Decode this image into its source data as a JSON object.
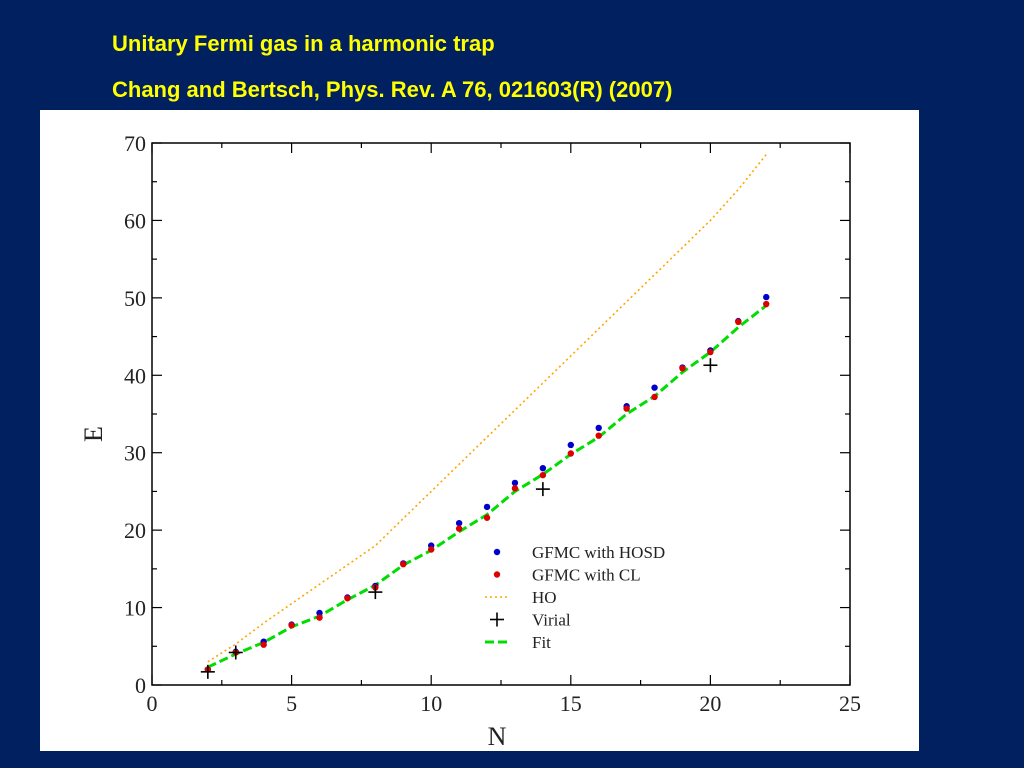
{
  "slide": {
    "title": "Unitary Fermi gas in a harmonic trap",
    "subtitle": "Chang and Bertsch, Phys. Rev. A 76, 021603(R) (2007)",
    "background_color": "#002060",
    "title_color": "#ffff00"
  },
  "chart_data": {
    "type": "scatter",
    "xlabel": "N",
    "ylabel": "E",
    "xlim": [
      0,
      25
    ],
    "ylim": [
      0,
      70
    ],
    "xticks": [
      0,
      5,
      10,
      15,
      20,
      25
    ],
    "yticks": [
      0,
      10,
      20,
      30,
      40,
      50,
      60,
      70
    ],
    "grid": false,
    "legend_placement": "lower-right",
    "series": [
      {
        "name": "GFMC with HOSD",
        "kind": "points",
        "marker": "dot",
        "color": "#0000cc",
        "x": [
          2,
          3,
          4,
          5,
          6,
          7,
          8,
          9,
          10,
          11,
          12,
          13,
          14,
          15,
          16,
          17,
          18,
          19,
          20,
          21,
          22
        ],
        "y": [
          2.0,
          4.3,
          5.6,
          7.8,
          9.3,
          11.3,
          12.8,
          15.7,
          18.0,
          20.9,
          23.0,
          26.1,
          28.0,
          31.0,
          33.2,
          36.0,
          38.4,
          41.0,
          43.2,
          47.0,
          50.1
        ]
      },
      {
        "name": "GFMC with CL",
        "kind": "points",
        "marker": "dot",
        "color": "#dd0000",
        "x": [
          2,
          3,
          4,
          5,
          6,
          7,
          8,
          9,
          10,
          11,
          12,
          13,
          14,
          15,
          16,
          17,
          18,
          19,
          20,
          21,
          22
        ],
        "y": [
          2.0,
          4.2,
          5.2,
          7.7,
          8.7,
          11.2,
          12.6,
          15.6,
          17.5,
          20.2,
          21.6,
          25.4,
          27.1,
          29.9,
          32.2,
          35.7,
          37.2,
          40.9,
          43.0,
          46.9,
          49.2
        ]
      },
      {
        "name": "HO",
        "kind": "line",
        "style": "dotted",
        "color": "#ffa500",
        "x": [
          2,
          3,
          4,
          5,
          6,
          7,
          8,
          9,
          10,
          11,
          12,
          13,
          14,
          15,
          16,
          17,
          18,
          19,
          20,
          21,
          22
        ],
        "y": [
          3.0,
          5.3,
          8.0,
          10.5,
          13.0,
          15.5,
          18.0,
          21.5,
          25.0,
          28.5,
          32.0,
          35.5,
          39.0,
          42.5,
          46.0,
          49.5,
          53.0,
          56.5,
          60.0,
          64.0,
          68.5
        ]
      },
      {
        "name": "Virial",
        "kind": "points",
        "marker": "plus",
        "color": "#000000",
        "x": [
          2,
          3,
          8,
          14,
          20
        ],
        "y": [
          1.7,
          4.2,
          12.0,
          25.3,
          41.3
        ]
      },
      {
        "name": "Fit",
        "kind": "line",
        "style": "dashed",
        "color": "#00dd00",
        "x": [
          2,
          3,
          4,
          5,
          6,
          7,
          8,
          9,
          10,
          11,
          12,
          13,
          14,
          15,
          16,
          17,
          18,
          19,
          20,
          21,
          22
        ],
        "y": [
          2.3,
          4.0,
          5.5,
          7.5,
          8.9,
          11.0,
          12.9,
          15.5,
          17.4,
          19.8,
          22.0,
          25.0,
          27.2,
          29.8,
          32.0,
          35.0,
          37.3,
          40.4,
          43.0,
          46.2,
          49.0
        ]
      }
    ]
  }
}
